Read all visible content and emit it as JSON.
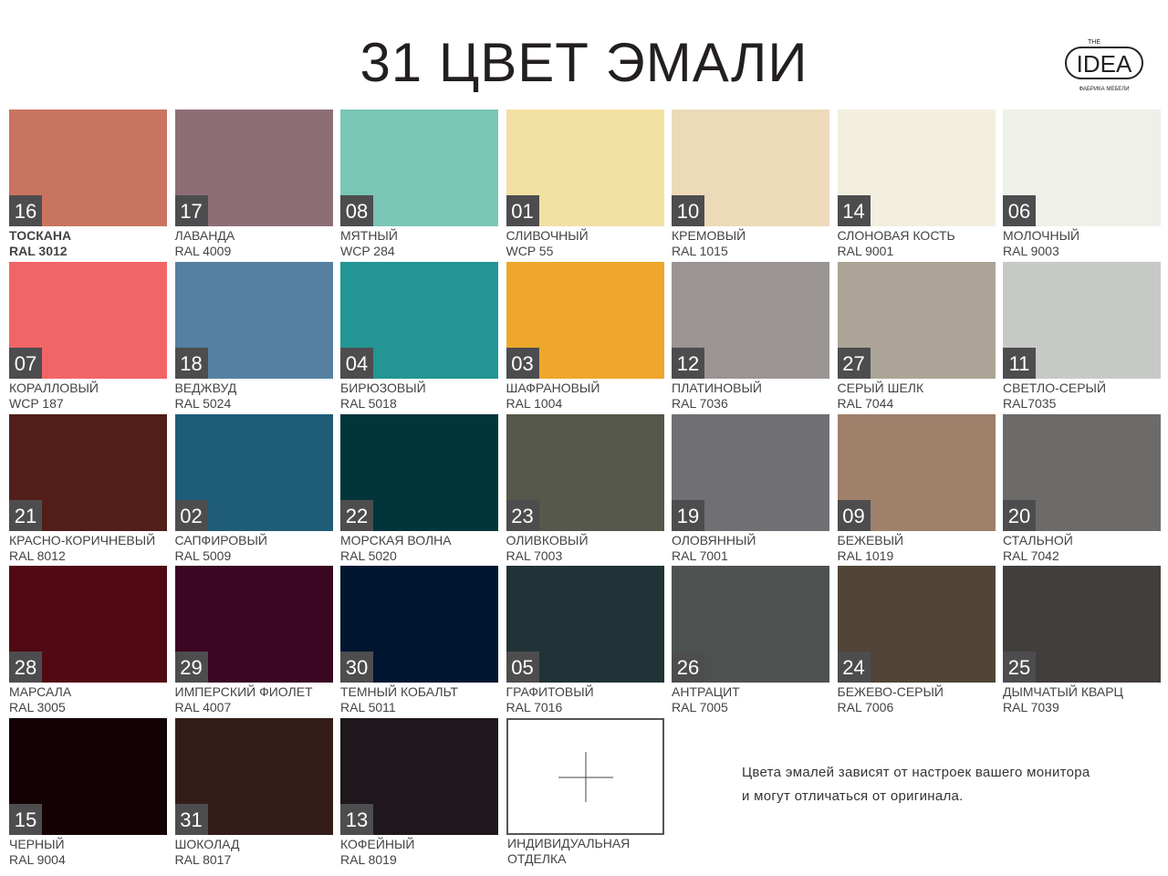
{
  "header": {
    "title": "31 ЦВЕТ ЭМАЛИ"
  },
  "logo": {
    "top": "THE",
    "main": "IDEA",
    "sub": "ФАБРИКА МЕБЕЛИ"
  },
  "swatches": [
    {
      "number": "16",
      "name": "ТОСКАНА",
      "code": "RAL 3012",
      "color": "#c97460"
    },
    {
      "number": "17",
      "name": "ЛАВАНДА",
      "code": "RAL 4009",
      "color": "#8e6e76"
    },
    {
      "number": "08",
      "name": "МЯТНЫЙ",
      "code": "WCP 284",
      "color": "#79c6b5"
    },
    {
      "number": "01",
      "name": "СЛИВОЧНЫЙ",
      "code": "WCP 55",
      "color": "#f2dfa2"
    },
    {
      "number": "10",
      "name": "КРЕМОВЫЙ",
      "code": "RAL 1015",
      "color": "#ecdab8"
    },
    {
      "number": "14",
      "name": "СЛОНОВАЯ КОСТЬ",
      "code": "RAL 9001",
      "color": "#f2efdf"
    },
    {
      "number": "06",
      "name": "МОЛОЧНЫЙ",
      "code": "RAL 9003",
      "color": "#f0f0ea"
    },
    {
      "number": "07",
      "name": "КОРАЛЛОВЫЙ",
      "code": "WCP 187",
      "color": "#f26566"
    },
    {
      "number": "18",
      "name": "ВЕДЖВУД",
      "code": "RAL 5024",
      "color": "#5580a2"
    },
    {
      "number": "04",
      "name": "БИРЮЗОВЫЙ",
      "code": "RAL 5018",
      "color": "#239594"
    },
    {
      "number": "03",
      "name": "ШАФРАНОВЫЙ",
      "code": "RAL 1004",
      "color": "#eea72b"
    },
    {
      "number": "12",
      "name": "ПЛАТИНОВЫЙ",
      "code": "RAL 7036",
      "color": "#9a9592"
    },
    {
      "number": "27",
      "name": "СЕРЫЙ ШЕЛК",
      "code": "RAL 7044",
      "color": "#aca597"
    },
    {
      "number": "11",
      "name": "СВЕТЛО-СЕРЫЙ",
      "code": "RAL7035",
      "color": "#c7c9c7"
    },
    {
      "number": "21",
      "name": "КРАСНО-КОРИЧНЕВЫЙ",
      "code": "RAL 8012",
      "color": "#521e1a"
    },
    {
      "number": "02",
      "name": "САПФИРОВЫЙ",
      "code": "RAL 5009",
      "color": "#1f5c78"
    },
    {
      "number": "22",
      "name": "МОРСКАЯ ВОЛНА",
      "code": "RAL 5020",
      "color": "#02353b"
    },
    {
      "number": "23",
      "name": "ОЛИВКОВЫЙ",
      "code": "RAL 7003",
      "color": "#55584a"
    },
    {
      "number": "19",
      "name": "ОЛОВЯННЫЙ",
      "code": "RAL 7001",
      "color": "#6f6f74"
    },
    {
      "number": "09",
      "name": "БЕЖЕВЫЙ",
      "code": "RAL 1019",
      "color": "#9e806b"
    },
    {
      "number": "20",
      "name": "СТАЛЬНОЙ",
      "code": "RAL 7042",
      "color": "#6c6b69"
    },
    {
      "number": "28",
      "name": "МАРСАЛА",
      "code": "RAL 3005",
      "color": "#510914"
    },
    {
      "number": "29",
      "name": "ИМПЕРСКИЙ ФИОЛЕТ",
      "code": "RAL 4007",
      "color": "#3a0622"
    },
    {
      "number": "30",
      "name": "ТЕМНЫЙ КОБАЛЬТ",
      "code": "RAL 5011",
      "color": "#001630"
    },
    {
      "number": "05",
      "name": "ГРАФИТОВЫЙ",
      "code": "RAL 7016",
      "color": "#213336"
    },
    {
      "number": "26",
      "name": "АНТРАЦИТ",
      "code": "RAL 7005",
      "color": "#4d5250"
    },
    {
      "number": "24",
      "name": "БЕЖЕВО-СЕРЫЙ",
      "code": "RAL 7006",
      "color": "#514538"
    },
    {
      "number": "25",
      "name": "ДЫМЧАТЫЙ КВАРЦ",
      "code": "RAL 7039",
      "color": "#423e3c"
    },
    {
      "number": "15",
      "name": "ЧЕРНЫЙ",
      "code": "RAL 9004",
      "color": "#140103"
    },
    {
      "number": "31",
      "name": "ШОКОЛАД",
      "code": "RAL 8017",
      "color": "#341d18"
    },
    {
      "number": "13",
      "name": "КОФЕЙНЫЙ",
      "code": "RAL 8019",
      "color": "#1f171c"
    }
  ],
  "custom": {
    "lines": [
      "ИНДИВИДУАЛЬНАЯ",
      "ОТДЕЛКА"
    ]
  },
  "note": {
    "lines": [
      "Цвета эмалей зависят от настроек  вашего монитора",
      "и могут отличаться  от оригинала."
    ]
  }
}
